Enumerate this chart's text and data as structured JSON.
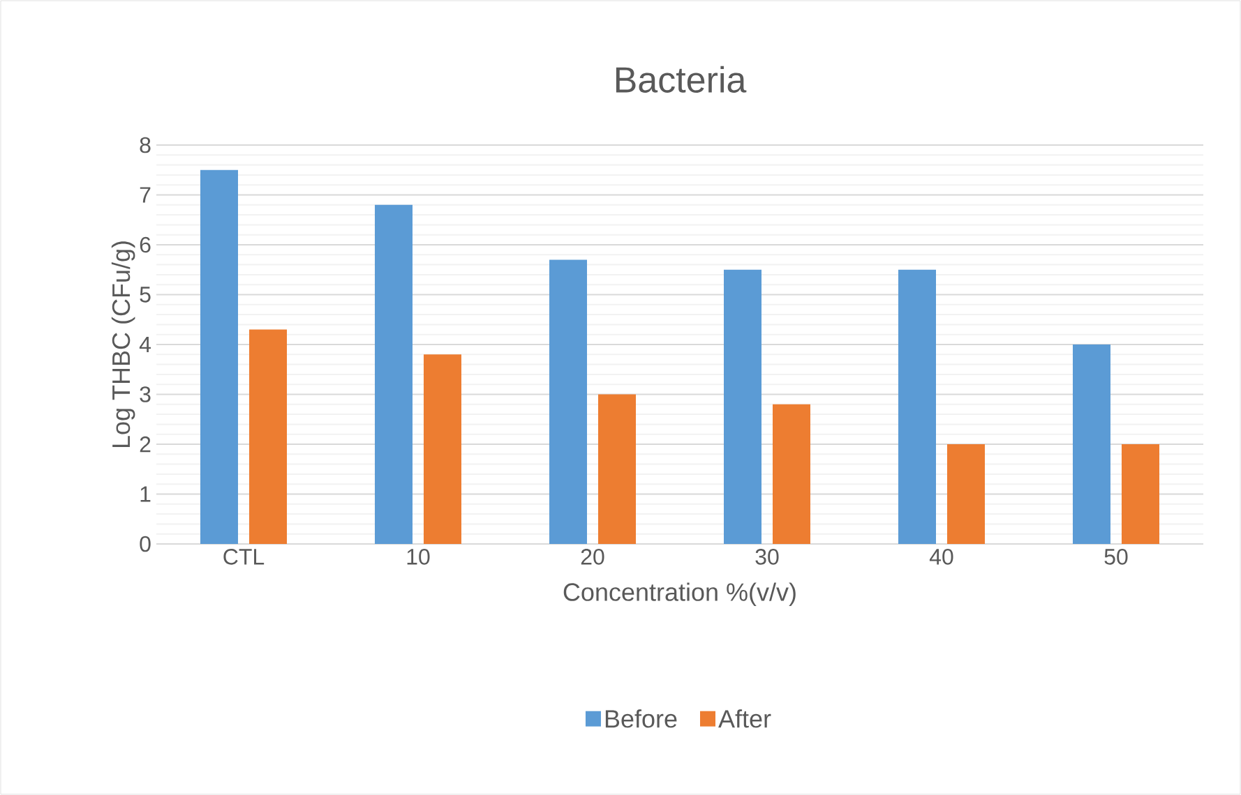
{
  "chart_data": {
    "type": "bar",
    "title": "Bacteria",
    "xlabel": "Concentration %(v/v)",
    "ylabel": "Log THBC (CFu/g)",
    "categories": [
      "CTL",
      "10",
      "20",
      "30",
      "40",
      "50"
    ],
    "series": [
      {
        "name": "Before",
        "color": "#5b9bd5",
        "values": [
          7.5,
          6.8,
          5.7,
          5.5,
          5.5,
          4.0
        ]
      },
      {
        "name": "After",
        "color": "#ed7d31",
        "values": [
          4.3,
          3.8,
          3.0,
          2.8,
          2.0,
          2.0
        ]
      }
    ],
    "ylim": [
      0,
      8
    ],
    "yticks": [
      0,
      1,
      2,
      3,
      4,
      5,
      6,
      7,
      8
    ],
    "grid": "y",
    "legend": "bottom"
  }
}
